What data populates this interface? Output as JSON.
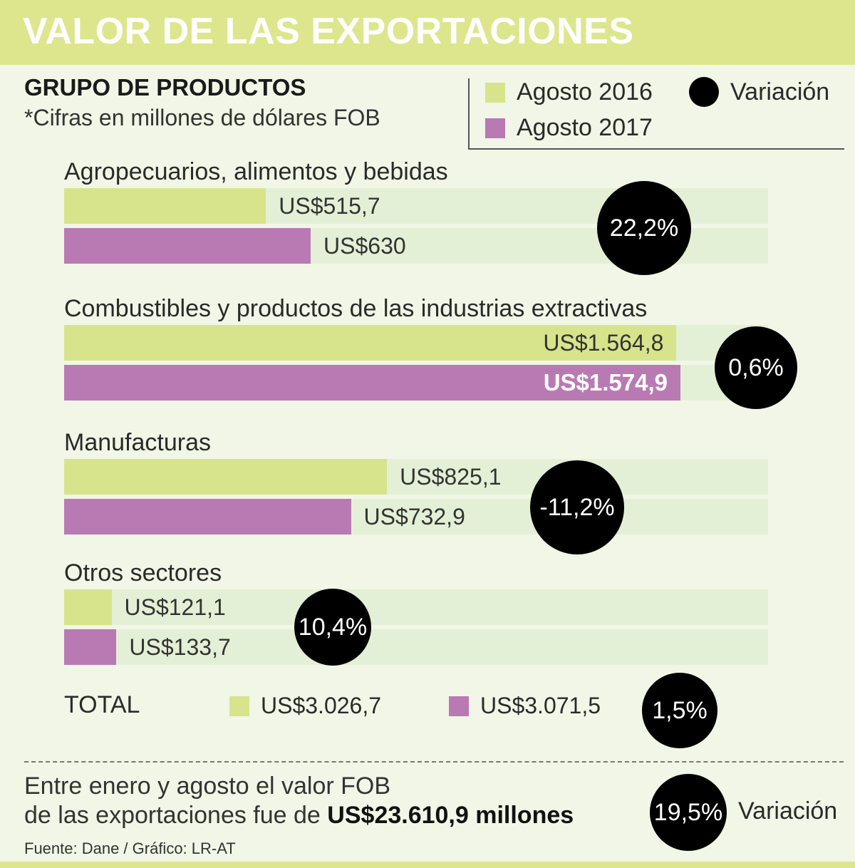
{
  "header": {
    "title": "VALOR DE LAS EXPORTACIONES"
  },
  "subtitle": "GRUPO DE PRODUCTOS",
  "note": "*Cifras en millones de dólares FOB",
  "legend": {
    "series1": "Agosto 2016",
    "series2": "Agosto 2017",
    "variation": "Variación"
  },
  "colors": {
    "series1": "#d7e48c",
    "series2": "#b97ab4",
    "bubble": "#000000",
    "header": "#dde68c"
  },
  "chart_data": {
    "type": "bar",
    "orientation": "horizontal",
    "title": "VALOR DE LAS EXPORTACIONES",
    "subtitle": "GRUPO DE PRODUCTOS",
    "unit_note": "*Cifras en millones de dólares FOB",
    "xlim": [
      0,
      1800
    ],
    "categories": [
      "Agropecuarios, alimentos y bebidas",
      "Combustibles y productos de las industrias extractivas",
      "Manufacturas",
      "Otros sectores"
    ],
    "series": [
      {
        "name": "Agosto 2016",
        "values": [
          515.7,
          1564.8,
          825.1,
          121.1
        ],
        "labels": [
          "US$515,7",
          "US$1.564,8",
          "US$825,1",
          "US$121,1"
        ]
      },
      {
        "name": "Agosto 2017",
        "values": [
          630,
          1574.9,
          732.9,
          133.7
        ],
        "labels": [
          "US$630",
          "US$1.574,9",
          "US$732,9",
          "US$133,7"
        ]
      }
    ],
    "variation": [
      "22,2%",
      "0,6%",
      "-11,2%",
      "10,4%"
    ]
  },
  "total": {
    "label": "TOTAL",
    "value_2016": "US$3.026,7",
    "value_2017": "US$3.071,5",
    "variation": "1,5%"
  },
  "footer": {
    "line1": "Entre enero y agosto el valor FOB",
    "line2_prefix": "de las exportaciones fue de ",
    "line2_bold": "US$23.610,9 millones",
    "variation": "19,5%",
    "variation_label": "Variación",
    "source": "Fuente: Dane / Gráfico: LR-AT"
  }
}
